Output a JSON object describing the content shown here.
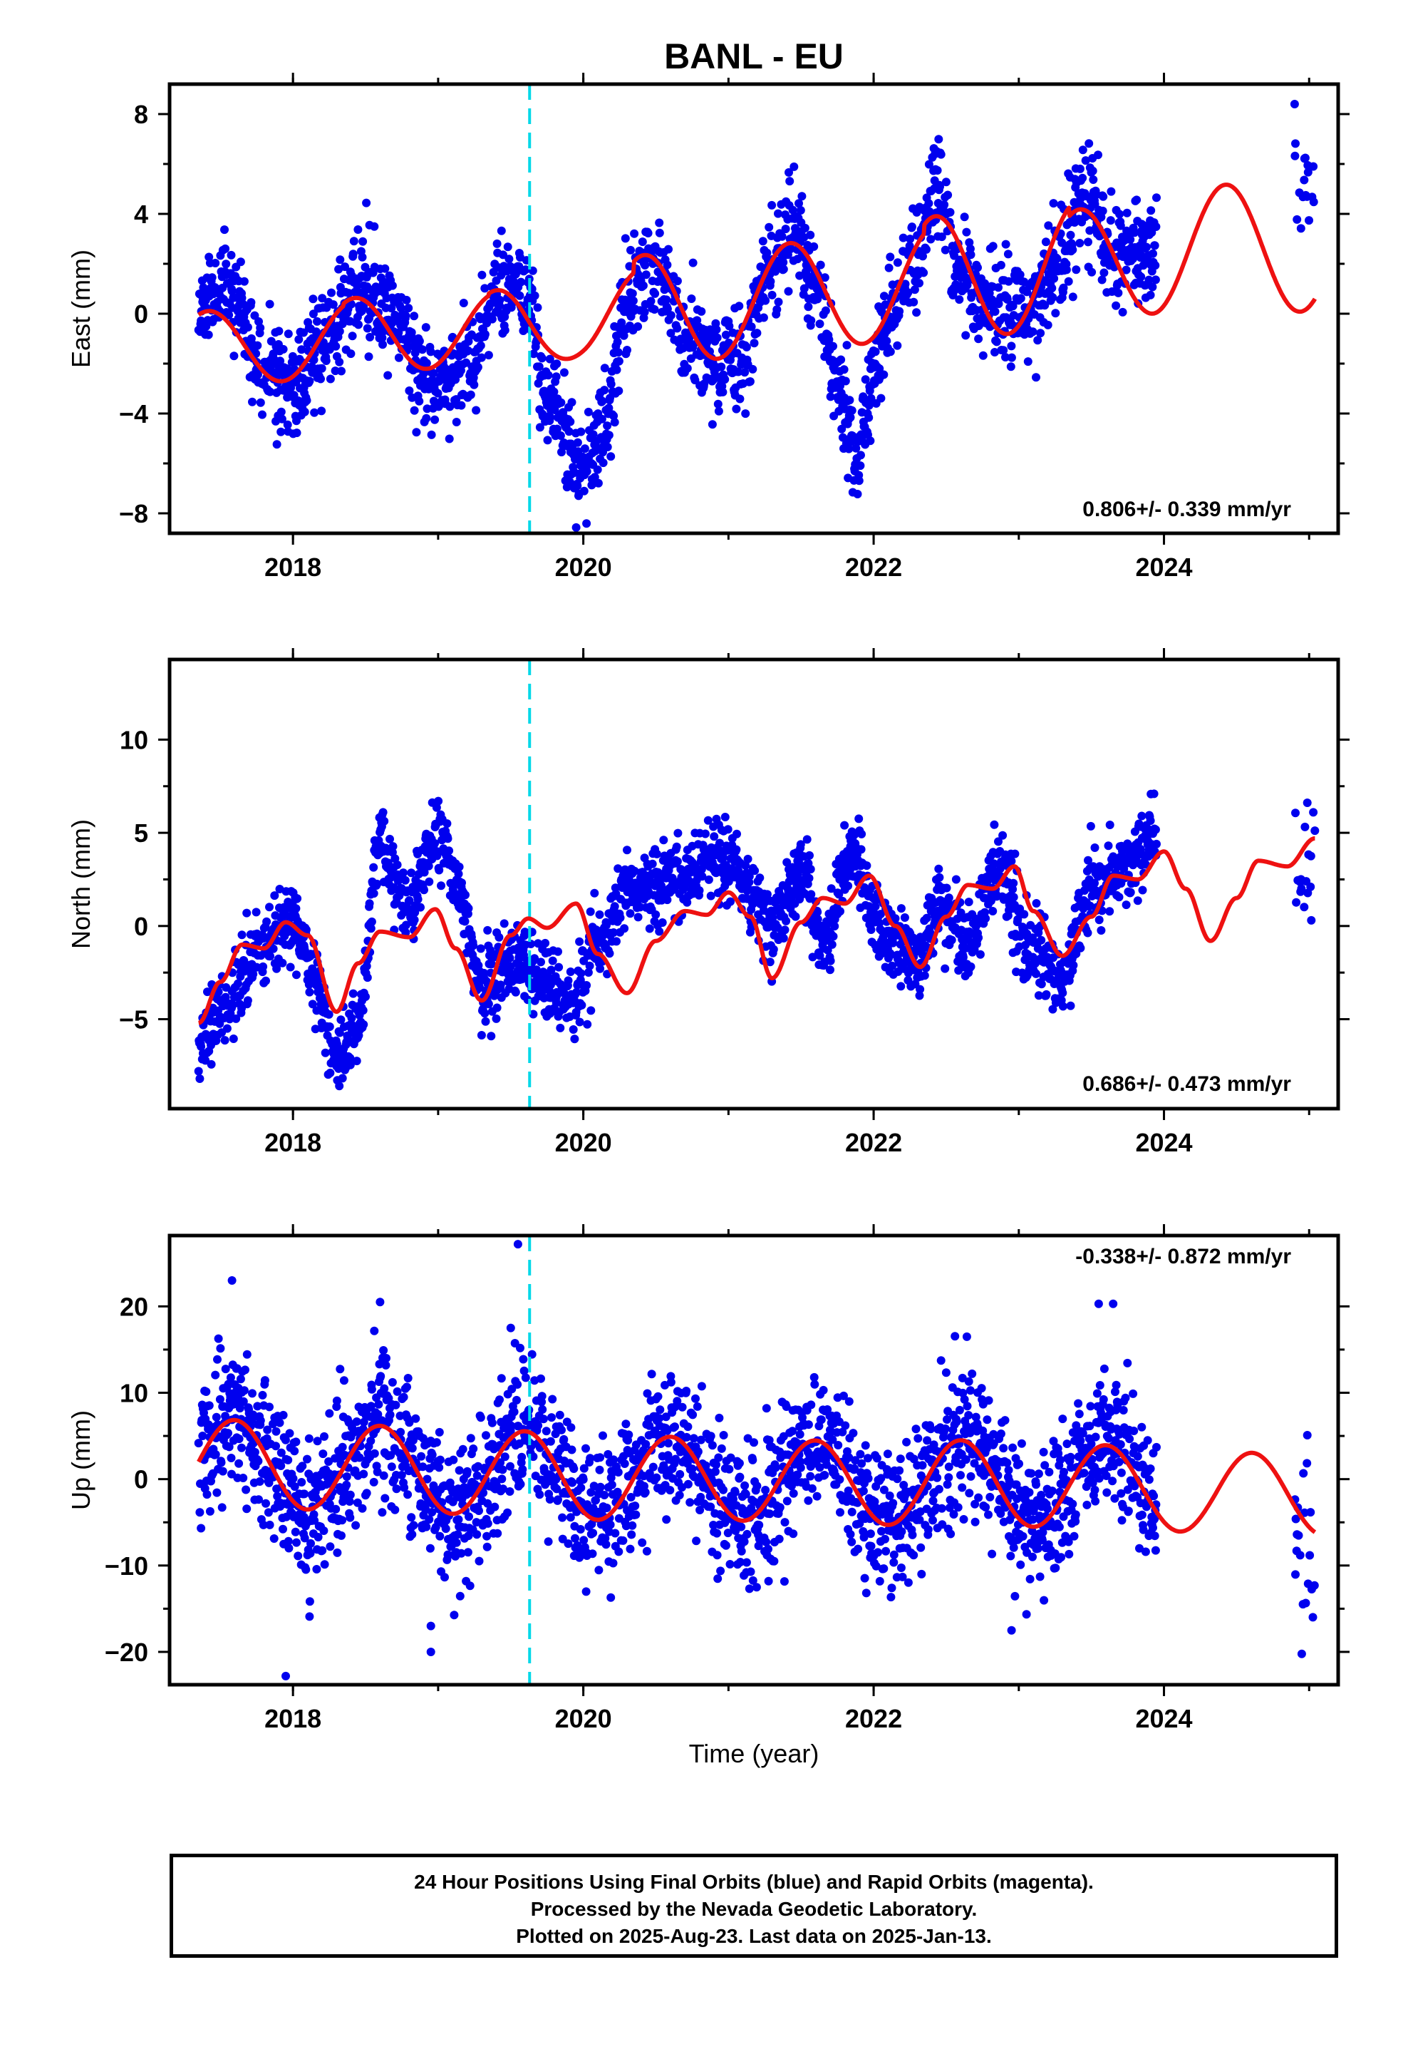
{
  "title": "BANL - EU",
  "xlabel": "Time (year)",
  "colors": {
    "points": "#0000ee",
    "model": "#ee1111",
    "event": "#00d8e8",
    "frame": "#000000"
  },
  "footer": {
    "line1": "24 Hour Positions Using Final Orbits (blue) and Rapid Orbits (magenta).",
    "line2": "Processed by the Nevada Geodetic Laboratory.",
    "line3": "Plotted on 2025-Aug-23. Last data on 2025-Jan-13."
  },
  "chart_data": [
    {
      "type": "scatter",
      "component": "east",
      "ylabel": "East (mm)",
      "xlim": [
        2017.15,
        2025.2
      ],
      "ylim": [
        -8.8,
        9.2
      ],
      "xticks": [
        2018,
        2020,
        2022,
        2024
      ],
      "yticks": [
        -8,
        -4,
        0,
        4,
        8
      ],
      "ytick_labels": [
        "−8",
        "−4",
        "0",
        "4",
        "8"
      ],
      "rate_label": "0.806+/- 0.339 mm/yr",
      "event_line_x": 2019.63,
      "data_range": [
        2017.35,
        2023.95
      ],
      "late_data_range": [
        2024.9,
        2025.04
      ],
      "trend": {
        "y0": 0.3,
        "rate": 0.0
      },
      "anchors": [
        [
          2017.35,
          0.3
        ],
        [
          2017.55,
          1.0
        ],
        [
          2017.8,
          -2.0
        ],
        [
          2018.0,
          -3.0
        ],
        [
          2018.2,
          -1.2
        ],
        [
          2018.45,
          0.8
        ],
        [
          2018.7,
          0.0
        ],
        [
          2018.95,
          -2.8
        ],
        [
          2019.2,
          -2.0
        ],
        [
          2019.45,
          1.3
        ],
        [
          2019.62,
          0.3
        ],
        [
          2019.75,
          -3.5
        ],
        [
          2020.0,
          -6.5
        ],
        [
          2020.15,
          -4.5
        ],
        [
          2020.3,
          0.5
        ],
        [
          2020.5,
          2.0
        ],
        [
          2020.7,
          -1.0
        ],
        [
          2020.9,
          -2.0
        ],
        [
          2021.1,
          -1.5
        ],
        [
          2021.3,
          2.0
        ],
        [
          2021.45,
          3.5
        ],
        [
          2021.6,
          1.5
        ],
        [
          2021.75,
          -3.0
        ],
        [
          2021.88,
          -5.5
        ],
        [
          2022.05,
          -1.0
        ],
        [
          2022.25,
          2.0
        ],
        [
          2022.45,
          5.5
        ],
        [
          2022.55,
          2.0
        ],
        [
          2022.75,
          0.5
        ],
        [
          2022.95,
          0.0
        ],
        [
          2023.1,
          0.5
        ],
        [
          2023.3,
          2.5
        ],
        [
          2023.45,
          5.0
        ],
        [
          2023.65,
          2.5
        ],
        [
          2023.95,
          2.5
        ]
      ],
      "late_anchors": [
        [
          2024.9,
          4.5
        ],
        [
          2025.04,
          5.0
        ]
      ],
      "noise": 1.0,
      "model": {
        "start": 2017.35,
        "end": 2025.04,
        "amp": [
          [
            1.5,
            2.8
          ],
          [
            1.6,
            2.8
          ],
          [
            1.7,
            3.0
          ],
          [
            2.2,
            3.2
          ],
          [
            2.2,
            3.0
          ],
          [
            2.6,
            3.2
          ],
          [
            2.2,
            3.0
          ],
          [
            2.2,
            2.8
          ]
        ],
        "phase_peak": 0.42,
        "mean_ctrl": [
          [
            2017.35,
            -1.4
          ],
          [
            2018.0,
            -1.2
          ],
          [
            2019.0,
            -0.6
          ],
          [
            2019.6,
            -0.8
          ],
          [
            2020.0,
            0.0
          ],
          [
            2021.0,
            0.4
          ],
          [
            2022.0,
            1.0
          ],
          [
            2023.0,
            1.8
          ],
          [
            2023.9,
            2.2
          ],
          [
            2024.5,
            3.0
          ],
          [
            2025.04,
            2.2
          ]
        ]
      },
      "seed": 11
    },
    {
      "type": "scatter",
      "component": "north",
      "ylabel": "North (mm)",
      "xlim": [
        2017.15,
        2025.2
      ],
      "ylim": [
        -9.8,
        14.3
      ],
      "xticks": [
        2018,
        2020,
        2022,
        2024
      ],
      "yticks": [
        -5,
        0,
        5,
        10
      ],
      "ytick_labels": [
        "−5",
        "0",
        "5",
        "10"
      ],
      "rate_label": "0.686+/- 0.473 mm/yr",
      "event_line_x": 2019.63,
      "data_range": [
        2017.35,
        2023.95
      ],
      "late_data_range": [
        2024.9,
        2025.04
      ],
      "anchors": [
        [
          2017.35,
          -6.5
        ],
        [
          2017.55,
          -4.0
        ],
        [
          2017.8,
          -1.0
        ],
        [
          2018.0,
          0.5
        ],
        [
          2018.15,
          -3.0
        ],
        [
          2018.3,
          -7.0
        ],
        [
          2018.45,
          -5.0
        ],
        [
          2018.6,
          4.0
        ],
        [
          2018.8,
          1.0
        ],
        [
          2019.0,
          5.0
        ],
        [
          2019.15,
          2.0
        ],
        [
          2019.3,
          -3.5
        ],
        [
          2019.55,
          -2.0
        ],
        [
          2019.65,
          -2.5
        ],
        [
          2019.9,
          -4.0
        ],
        [
          2020.1,
          -1.0
        ],
        [
          2020.3,
          1.5
        ],
        [
          2020.5,
          2.0
        ],
        [
          2020.7,
          2.5
        ],
        [
          2020.95,
          4.0
        ],
        [
          2021.15,
          2.0
        ],
        [
          2021.3,
          0.0
        ],
        [
          2021.5,
          3.0
        ],
        [
          2021.65,
          -1.0
        ],
        [
          2021.85,
          4.0
        ],
        [
          2022.05,
          0.0
        ],
        [
          2022.3,
          -2.0
        ],
        [
          2022.45,
          1.0
        ],
        [
          2022.65,
          -1.0
        ],
        [
          2022.85,
          3.0
        ],
        [
          2023.1,
          -1.5
        ],
        [
          2023.3,
          -3.0
        ],
        [
          2023.5,
          2.0
        ],
        [
          2023.7,
          3.0
        ],
        [
          2023.95,
          5.0
        ]
      ],
      "late_anchors": [
        [
          2024.9,
          2.5
        ],
        [
          2025.04,
          4.5
        ]
      ],
      "noise": 1.0,
      "model_ctrl": [
        [
          2017.35,
          -5.2
        ],
        [
          2017.5,
          -3.0
        ],
        [
          2017.65,
          -1.0
        ],
        [
          2017.8,
          -1.2
        ],
        [
          2017.95,
          0.2
        ],
        [
          2018.1,
          -0.5
        ],
        [
          2018.3,
          -4.6
        ],
        [
          2018.45,
          -2.0
        ],
        [
          2018.6,
          -0.3
        ],
        [
          2018.8,
          -0.6
        ],
        [
          2018.98,
          0.9
        ],
        [
          2019.12,
          -1.2
        ],
        [
          2019.3,
          -4.0
        ],
        [
          2019.5,
          -0.5
        ],
        [
          2019.62,
          0.4
        ],
        [
          2019.75,
          -0.1
        ],
        [
          2019.95,
          1.2
        ],
        [
          2020.1,
          -1.5
        ],
        [
          2020.3,
          -3.6
        ],
        [
          2020.5,
          -0.8
        ],
        [
          2020.7,
          0.8
        ],
        [
          2020.85,
          0.6
        ],
        [
          2021.0,
          1.8
        ],
        [
          2021.15,
          0.5
        ],
        [
          2021.3,
          -2.8
        ],
        [
          2021.5,
          0.2
        ],
        [
          2021.65,
          1.5
        ],
        [
          2021.8,
          1.2
        ],
        [
          2021.97,
          2.7
        ],
        [
          2022.15,
          0.0
        ],
        [
          2022.32,
          -2.2
        ],
        [
          2022.5,
          0.5
        ],
        [
          2022.65,
          2.2
        ],
        [
          2022.82,
          2.0
        ],
        [
          2022.97,
          3.2
        ],
        [
          2023.1,
          0.8
        ],
        [
          2023.3,
          -1.6
        ],
        [
          2023.5,
          0.5
        ],
        [
          2023.65,
          2.7
        ],
        [
          2023.82,
          2.5
        ],
        [
          2024.0,
          4.0
        ],
        [
          2024.15,
          2.0
        ],
        [
          2024.32,
          -0.8
        ],
        [
          2024.5,
          1.5
        ],
        [
          2024.65,
          3.5
        ],
        [
          2024.85,
          3.2
        ],
        [
          2025.04,
          4.7
        ]
      ],
      "seed": 23
    },
    {
      "type": "scatter",
      "component": "up",
      "ylabel": "Up (mm)",
      "xlim": [
        2017.15,
        2025.2
      ],
      "ylim": [
        -23.8,
        28.2
      ],
      "xticks": [
        2018,
        2020,
        2022,
        2024
      ],
      "yticks": [
        -20,
        -10,
        0,
        10,
        20
      ],
      "ytick_labels": [
        "−20",
        "−10",
        "0",
        "10",
        "20"
      ],
      "rate_label": "-0.338+/- 0.872 mm/yr",
      "event_line_x": 2019.63,
      "data_range": [
        2017.35,
        2023.95
      ],
      "late_data_range": [
        2024.9,
        2025.04
      ],
      "noise": 4.0,
      "model": {
        "start": 2017.35,
        "end": 2025.04,
        "amp": [
          [
            5.0,
            5.0
          ],
          [
            5.0,
            5.0
          ],
          [
            5.0,
            5.0
          ],
          [
            4.8,
            5.0
          ],
          [
            4.8,
            5.0
          ],
          [
            5.0,
            5.0
          ],
          [
            4.8,
            5.0
          ],
          [
            5.0,
            5.0
          ]
        ],
        "phase_peak": 0.6,
        "mean_ctrl": [
          [
            2017.35,
            2.0
          ],
          [
            2018.0,
            1.5
          ],
          [
            2019.0,
            1.0
          ],
          [
            2020.0,
            0.3
          ],
          [
            2021.0,
            0.0
          ],
          [
            2022.0,
            -0.5
          ],
          [
            2023.0,
            -0.5
          ],
          [
            2023.9,
            -1.0
          ],
          [
            2024.5,
            -2.0
          ],
          [
            2025.04,
            -1.5
          ]
        ]
      },
      "outliers": [
        [
          2017.58,
          23
        ],
        [
          2017.95,
          -22.8
        ],
        [
          2018.6,
          20.5
        ],
        [
          2018.95,
          -17
        ],
        [
          2018.95,
          -20
        ],
        [
          2019.55,
          27.2
        ],
        [
          2019.5,
          17.5
        ],
        [
          2023.55,
          20.3
        ],
        [
          2023.65,
          20.3
        ],
        [
          2022.95,
          -17.5
        ]
      ],
      "seed": 37
    }
  ]
}
